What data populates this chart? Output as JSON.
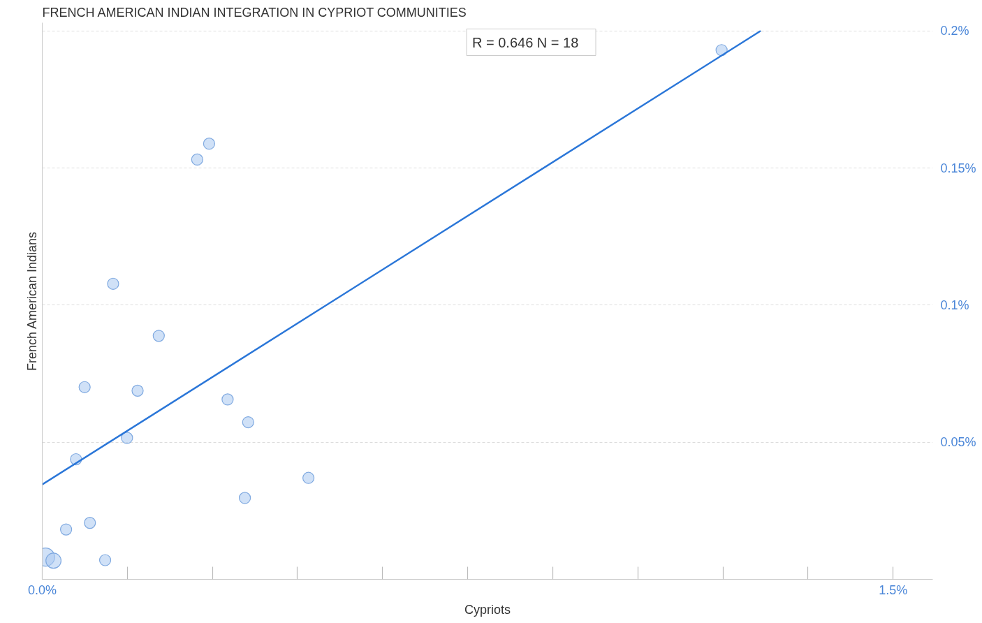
{
  "chart_data": {
    "type": "bubble",
    "title": "FRENCH AMERICAN INDIAN INTEGRATION IN CYPRIOT COMMUNITIES",
    "xlabel": "Cypriots",
    "ylabel": "French American Indians",
    "annotations": [
      "R = 0.646    N = 18"
    ],
    "series": [
      {
        "color": "#a9c8f0",
        "x": [
          0.0058,
          0.0198,
          0.042,
          0.0595,
          0.0747,
          0.084,
          0.1109,
          0.1249,
          0.1494,
          0.1681,
          0.2054,
          0.2732,
          0.2942,
          0.3268,
          0.3572,
          0.363,
          0.4693,
          1.1977
        ],
        "values": [
          0.0081,
          0.0068,
          0.0182,
          0.0438,
          0.0701,
          0.0206,
          0.007,
          0.1078,
          0.0516,
          0.0688,
          0.0888,
          0.1531,
          0.1589,
          0.0656,
          0.0297,
          0.0573,
          0.037,
          0.193
        ],
        "sizes": [
          1,
          0.7,
          0.38,
          0.38,
          0.38,
          0.38,
          0.38,
          0.38,
          0.38,
          0.38,
          0.38,
          0.38,
          0.38,
          0.38,
          0.38,
          0.38,
          0.38,
          0.38
        ]
      },
      {
        "type": "line",
        "color": "#2a76d8",
        "x": [
          0,
          1.2665
        ],
        "values": [
          0.0346,
          0.2
        ]
      }
    ],
    "xlim": [
      0,
      1.57
    ],
    "ylim": [
      0,
      0.203
    ],
    "xticks": [
      {
        "value": 0,
        "label": "0.0%"
      },
      {
        "value": 1.5,
        "label": "1.5%"
      }
    ],
    "yticks": [
      {
        "value": 0.05,
        "label": "0.05%"
      },
      {
        "value": 0.1,
        "label": "0.1%"
      },
      {
        "value": 0.15,
        "label": "0.15%"
      },
      {
        "value": 0.2,
        "label": "0.2%"
      }
    ],
    "grid": "y"
  }
}
